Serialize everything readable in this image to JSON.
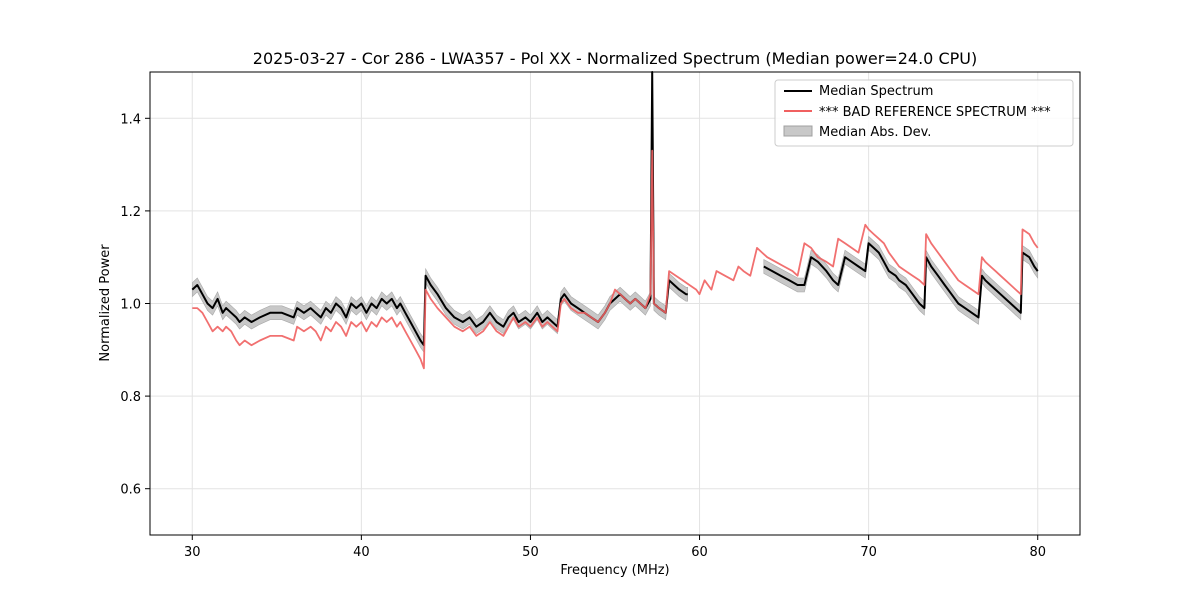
{
  "chart_data": {
    "type": "line",
    "title": "2025-03-27 - Cor 286 - LWA357 - Pol XX - Normalized Spectrum (Median power=24.0 CPU)",
    "xlabel": "Frequency (MHz)",
    "ylabel": "Normalized Power",
    "xlim": [
      27.5,
      82.5
    ],
    "ylim": [
      0.5,
      1.5
    ],
    "xticks": [
      30,
      40,
      50,
      60,
      70,
      80
    ],
    "yticks": [
      0.6,
      0.8,
      1.0,
      1.2,
      1.4
    ],
    "xtick_labels": [
      "30",
      "40",
      "50",
      "60",
      "70",
      "80"
    ],
    "ytick_labels": [
      "0.6",
      "0.8",
      "1.0",
      "1.2",
      "1.4"
    ],
    "grid": true,
    "legend_position": "top-right",
    "legend": [
      {
        "label": "Median Spectrum",
        "kind": "line",
        "color": "#000000"
      },
      {
        "label": "*** BAD REFERENCE SPECTRUM ***",
        "kind": "line",
        "color": "#f06060"
      },
      {
        "label": "Median Abs. Dev.",
        "kind": "band",
        "color": "#c8c8c8"
      }
    ],
    "series": [
      {
        "name": "Median Spectrum",
        "color": "#000000",
        "x": [
          30.0,
          30.3,
          30.6,
          30.9,
          31.2,
          31.5,
          31.8,
          32.0,
          32.3,
          32.6,
          32.8,
          33.1,
          33.5,
          34.0,
          34.6,
          35.3,
          36.0,
          36.2,
          36.6,
          37.0,
          37.3,
          37.6,
          37.9,
          38.2,
          38.5,
          38.8,
          39.1,
          39.4,
          39.7,
          40.0,
          40.3,
          40.6,
          40.9,
          41.2,
          41.5,
          41.8,
          42.1,
          42.3,
          42.6,
          42.9,
          43.2,
          43.5,
          43.7,
          43.8,
          44.1,
          44.5,
          45.0,
          45.5,
          46.0,
          46.4,
          46.8,
          47.2,
          47.6,
          48.0,
          48.4,
          48.7,
          49.0,
          49.3,
          49.7,
          50.0,
          50.4,
          50.7,
          51.0,
          51.3,
          51.6,
          51.8,
          52.0,
          52.4,
          52.8,
          53.2,
          53.6,
          54.0,
          54.4,
          54.7,
          55.0,
          55.3,
          55.6,
          55.9,
          56.2,
          56.5,
          56.8,
          57.1,
          57.2,
          57.3,
          57.6,
          58.0,
          58.2,
          58.5,
          58.8,
          59.2,
          59.3,
          null,
          63.8,
          64.3,
          64.8,
          65.3,
          65.8,
          66.2,
          66.6,
          67.0,
          67.5,
          67.9,
          68.2,
          68.6,
          69.0,
          69.4,
          69.8,
          70.0,
          70.3,
          70.6,
          70.9,
          71.2,
          71.6,
          71.8,
          72.2,
          72.6,
          73.0,
          73.3,
          73.4,
          73.7,
          74.1,
          74.5,
          74.9,
          75.3,
          75.7,
          76.1,
          76.5,
          76.7,
          76.9,
          77.2,
          77.5,
          77.8,
          78.1,
          78.4,
          78.7,
          79.0,
          79.1,
          79.5,
          79.8,
          80.0
        ],
        "y": [
          1.03,
          1.04,
          1.02,
          1.0,
          0.99,
          1.01,
          0.98,
          0.99,
          0.98,
          0.97,
          0.96,
          0.97,
          0.96,
          0.97,
          0.98,
          0.98,
          0.97,
          0.99,
          0.98,
          0.99,
          0.98,
          0.97,
          0.99,
          0.98,
          1.0,
          0.99,
          0.97,
          1.0,
          0.99,
          1.0,
          0.98,
          1.0,
          0.99,
          1.01,
          1.0,
          1.01,
          0.99,
          1.0,
          0.98,
          0.96,
          0.94,
          0.92,
          0.91,
          1.06,
          1.04,
          1.02,
          0.99,
          0.97,
          0.96,
          0.97,
          0.95,
          0.96,
          0.98,
          0.96,
          0.95,
          0.97,
          0.98,
          0.96,
          0.97,
          0.96,
          0.98,
          0.96,
          0.97,
          0.96,
          0.95,
          1.01,
          1.02,
          1.0,
          0.99,
          0.98,
          0.97,
          0.96,
          0.98,
          1.0,
          1.01,
          1.02,
          1.01,
          1.0,
          1.01,
          1.0,
          0.99,
          1.01,
          1.5,
          1.0,
          0.99,
          0.98,
          1.05,
          1.04,
          1.03,
          1.02,
          1.02,
          null,
          1.08,
          1.07,
          1.06,
          1.05,
          1.04,
          1.04,
          1.1,
          1.09,
          1.07,
          1.05,
          1.04,
          1.1,
          1.09,
          1.08,
          1.07,
          1.13,
          1.12,
          1.11,
          1.09,
          1.07,
          1.06,
          1.05,
          1.04,
          1.02,
          1.0,
          0.99,
          1.1,
          1.08,
          1.06,
          1.04,
          1.02,
          1.0,
          0.99,
          0.98,
          0.97,
          1.06,
          1.05,
          1.04,
          1.03,
          1.02,
          1.01,
          1.0,
          0.99,
          0.98,
          1.11,
          1.1,
          1.08,
          1.07
        ]
      },
      {
        "name": "*** BAD REFERENCE SPECTRUM ***",
        "color": "#f06060",
        "x": [
          30.0,
          30.3,
          30.6,
          30.9,
          31.2,
          31.5,
          31.8,
          32.0,
          32.3,
          32.6,
          32.8,
          33.1,
          33.5,
          34.0,
          34.6,
          35.3,
          36.0,
          36.2,
          36.6,
          37.0,
          37.3,
          37.6,
          37.9,
          38.2,
          38.5,
          38.8,
          39.1,
          39.4,
          39.7,
          40.0,
          40.3,
          40.6,
          40.9,
          41.2,
          41.5,
          41.8,
          42.1,
          42.3,
          42.6,
          42.9,
          43.2,
          43.5,
          43.7,
          43.8,
          44.1,
          44.5,
          45.0,
          45.5,
          46.0,
          46.4,
          46.8,
          47.2,
          47.6,
          48.0,
          48.4,
          48.7,
          49.0,
          49.3,
          49.7,
          50.0,
          50.4,
          50.7,
          51.0,
          51.3,
          51.6,
          51.8,
          52.0,
          52.4,
          52.8,
          53.2,
          53.6,
          54.0,
          54.4,
          54.7,
          55.0,
          55.3,
          55.6,
          55.9,
          56.2,
          56.5,
          56.8,
          57.1,
          57.2,
          57.3,
          57.6,
          58.0,
          58.2,
          58.6,
          59.0,
          59.4,
          59.8,
          60.0,
          60.3,
          60.5,
          60.7,
          61.0,
          61.5,
          62.0,
          62.3,
          62.6,
          63.0,
          63.4,
          63.7,
          64.0,
          64.5,
          65.0,
          65.5,
          65.8,
          66.2,
          66.6,
          67.0,
          67.5,
          67.9,
          68.2,
          68.6,
          69.0,
          69.4,
          69.8,
          70.0,
          70.3,
          70.6,
          70.9,
          71.2,
          71.6,
          71.8,
          72.2,
          72.6,
          73.0,
          73.3,
          73.4,
          73.7,
          74.1,
          74.5,
          74.9,
          75.3,
          75.7,
          76.1,
          76.5,
          76.7,
          76.9,
          77.2,
          77.5,
          77.8,
          78.1,
          78.4,
          78.7,
          79.0,
          79.1,
          79.5,
          79.8,
          80.0
        ],
        "y": [
          0.99,
          0.99,
          0.98,
          0.96,
          0.94,
          0.95,
          0.94,
          0.95,
          0.94,
          0.92,
          0.91,
          0.92,
          0.91,
          0.92,
          0.93,
          0.93,
          0.92,
          0.95,
          0.94,
          0.95,
          0.94,
          0.92,
          0.95,
          0.94,
          0.96,
          0.95,
          0.93,
          0.96,
          0.95,
          0.96,
          0.94,
          0.96,
          0.95,
          0.97,
          0.96,
          0.97,
          0.95,
          0.96,
          0.94,
          0.92,
          0.9,
          0.88,
          0.86,
          1.03,
          1.01,
          0.99,
          0.97,
          0.95,
          0.94,
          0.95,
          0.93,
          0.94,
          0.96,
          0.94,
          0.93,
          0.95,
          0.97,
          0.95,
          0.96,
          0.95,
          0.97,
          0.95,
          0.96,
          0.95,
          0.94,
          1.0,
          1.01,
          0.99,
          0.98,
          0.98,
          0.97,
          0.96,
          0.98,
          1.0,
          1.03,
          1.02,
          1.01,
          1.0,
          1.01,
          1.0,
          0.99,
          1.02,
          1.33,
          1.0,
          0.99,
          0.98,
          1.07,
          1.06,
          1.05,
          1.04,
          1.03,
          1.02,
          1.05,
          1.04,
          1.03,
          1.07,
          1.06,
          1.05,
          1.08,
          1.07,
          1.06,
          1.12,
          1.11,
          1.1,
          1.09,
          1.08,
          1.07,
          1.06,
          1.13,
          1.12,
          1.1,
          1.09,
          1.08,
          1.14,
          1.13,
          1.12,
          1.11,
          1.17,
          1.16,
          1.15,
          1.14,
          1.13,
          1.11,
          1.09,
          1.08,
          1.07,
          1.06,
          1.05,
          1.04,
          1.15,
          1.13,
          1.11,
          1.09,
          1.07,
          1.05,
          1.04,
          1.03,
          1.02,
          1.1,
          1.09,
          1.08,
          1.07,
          1.06,
          1.05,
          1.04,
          1.03,
          1.02,
          1.16,
          1.15,
          1.13,
          1.12
        ]
      }
    ],
    "band": {
      "name": "Median Abs. Dev.",
      "color": "#c8c8c8",
      "halfwidth": 0.015
    }
  }
}
